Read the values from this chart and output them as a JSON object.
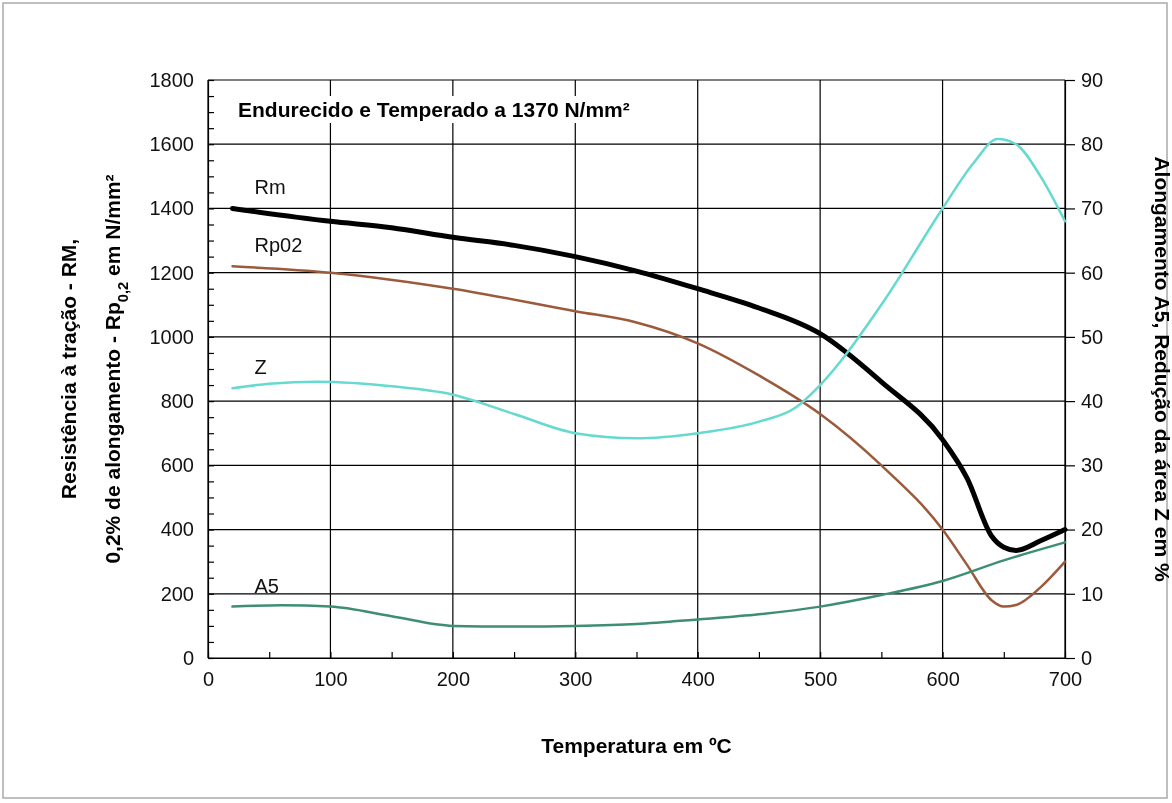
{
  "chart_data": {
    "type": "line",
    "title": "Endurecido e Temperado a 1370 N/mm²",
    "xlabel": "Temperatura em ºC",
    "ylabel": "Resistência à tração - RM,\n0,2% de alongamento - Rp$_{0,2}$ em N/mm²",
    "y2label": "Alongamento A5, Redução da área Z em %",
    "xlim": [
      0,
      700
    ],
    "xticks": [
      0,
      {
        "value": 50,
        "label": null
      },
      100,
      {
        "value": 150,
        "label": null
      },
      200,
      {
        "value": 250,
        "label": null
      },
      300,
      {
        "value": 350,
        "label": null
      },
      400,
      {
        "value": 450,
        "label": null
      },
      500,
      {
        "value": 550,
        "label": null
      },
      600,
      {
        "value": 650,
        "label": null
      },
      700
    ],
    "ylim": [
      0,
      1800
    ],
    "yticks": [
      0,
      {
        "value": 50,
        "label": null
      },
      {
        "value": 100,
        "label": null
      },
      {
        "value": 150,
        "label": null
      },
      200,
      {
        "value": 250,
        "label": null
      },
      {
        "value": 300,
        "label": null
      },
      {
        "value": 350,
        "label": null
      },
      400,
      {
        "value": 450,
        "label": null
      },
      {
        "value": 500,
        "label": null
      },
      {
        "value": 550,
        "label": null
      },
      600,
      {
        "value": 650,
        "label": null
      },
      {
        "value": 700,
        "label": null
      },
      {
        "value": 750,
        "label": null
      },
      800,
      {
        "value": 850,
        "label": null
      },
      {
        "value": 900,
        "label": null
      },
      {
        "value": 950,
        "label": null
      },
      1000,
      {
        "value": 1050,
        "label": null
      },
      {
        "value": 1100,
        "label": null
      },
      {
        "value": 1150,
        "label": null
      },
      1200,
      {
        "value": 1250,
        "label": null
      },
      {
        "value": 1300,
        "label": null
      },
      {
        "value": 1350,
        "label": null
      },
      1400,
      {
        "value": 1450,
        "label": null
      },
      {
        "value": 1500,
        "label": null
      },
      {
        "value": 1550,
        "label": null
      },
      1600,
      {
        "value": 1650,
        "label": null
      },
      {
        "value": 1700,
        "label": null
      },
      {
        "value": 1750,
        "label": null
      },
      1800
    ],
    "y2lim": [
      0,
      90
    ],
    "y2ticks": [
      0,
      10,
      20,
      30,
      40,
      50,
      60,
      70,
      80,
      90
    ],
    "grid": true,
    "legend": false,
    "line_style": "solid",
    "marker": "none",
    "series": [
      {
        "name": "Rm",
        "color": "#000000",
        "x": [
          20,
          100,
          150,
          200,
          250,
          300,
          350,
          400,
          450,
          500,
          550,
          600,
          620,
          640,
          650,
          660,
          680,
          700
        ],
        "values": [
          1400,
          1360,
          1340,
          1310,
          1285,
          1250,
          1205,
          1150,
          1090,
          1010,
          860,
          680,
          560,
          380,
          345,
          335,
          365,
          400
        ]
      },
      {
        "name": "Rp02",
        "color": "#9b5a3c",
        "x": [
          20,
          100,
          200,
          300,
          350,
          400,
          450,
          500,
          550,
          600,
          620,
          640,
          650,
          660,
          680,
          700
        ],
        "values": [
          1220,
          1200,
          1150,
          1080,
          1045,
          980,
          880,
          760,
          600,
          400,
          290,
          180,
          160,
          165,
          220,
          300
        ]
      },
      {
        "name": "Z",
        "color": "#66d9d0",
        "axis": "y2",
        "x": [
          20,
          50,
          90,
          150,
          200,
          250,
          300,
          350,
          400,
          450,
          480,
          500,
          550,
          600,
          625,
          645,
          660,
          680,
          700
        ],
        "values": [
          42,
          42.7,
          43,
          42.3,
          41,
          38,
          35,
          34.2,
          35,
          36.8,
          39,
          42.5,
          55,
          70,
          77,
          80.8,
          80,
          75,
          68
        ]
      },
      {
        "name": "A5",
        "color": "#3e8e74",
        "axis": "y2",
        "x": [
          20,
          60,
          100,
          150,
          200,
          250,
          300,
          350,
          400,
          450,
          500,
          550,
          600,
          650,
          700
        ],
        "values": [
          8,
          8.2,
          8,
          6.5,
          5,
          4.9,
          5,
          5.3,
          6,
          6.8,
          8,
          9.8,
          12,
          15.2,
          18
        ]
      }
    ]
  }
}
